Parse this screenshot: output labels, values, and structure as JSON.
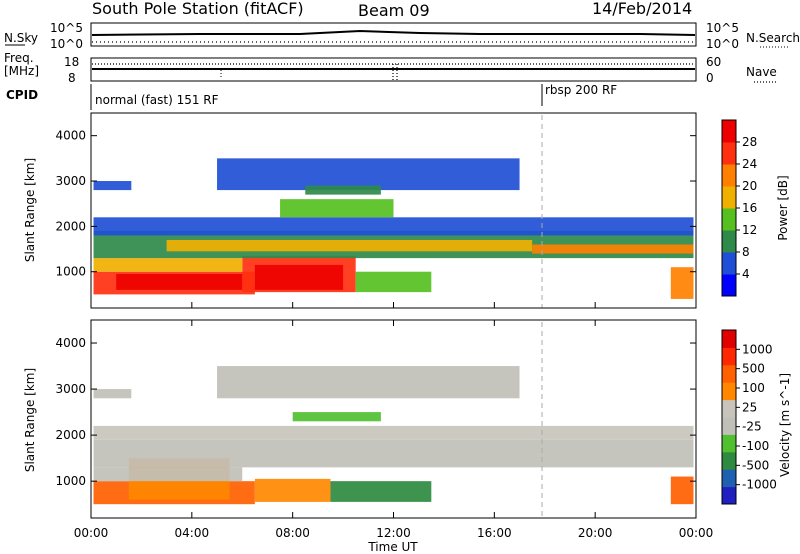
{
  "header": {
    "station": "South Pole Station (fitACF)",
    "beam": "Beam 09",
    "date": "14/Feb/2014"
  },
  "top_panels": {
    "nsky_label": "N.Sky",
    "nsearch_label": "N.Search",
    "freq_label_line1": "Freq.",
    "freq_label_line2": "[MHz]",
    "nave_label": "Nave",
    "cpid_label": "CPID",
    "counts_ticks": [
      "10^5",
      "10^0"
    ],
    "freq_ticks": [
      "18",
      "8"
    ],
    "nave_ticks": [
      "60",
      "0"
    ],
    "cpid_segments": [
      {
        "label": "normal (fast) 151 RF",
        "start_hour": 0
      },
      {
        "label": "rbsp 200 RF",
        "start_hour": 18
      }
    ]
  },
  "colors": {
    "power": [
      "#0000ff",
      "#1f4fd6",
      "#2f8a4a",
      "#55c020",
      "#f0b000",
      "#ff8000",
      "#ff3010",
      "#ee0000"
    ],
    "velocity": [
      "#2020c0",
      "#2060b0",
      "#2e8a40",
      "#50c030",
      "#c0c0b8",
      "#c8c4bc",
      "#ff8800",
      "#ff6000",
      "#ff2800",
      "#e00000"
    ]
  },
  "chart_data": [
    {
      "type": "heatmap",
      "quantity": "Power",
      "ylabel": "Slant Range [km]",
      "colorbar_label": "Power [dB]",
      "colorbar_ticks": [
        "28",
        "24",
        "20",
        "16",
        "12",
        "8",
        "4"
      ],
      "colorbar_range": [
        0,
        32
      ],
      "ylim": [
        200,
        4500
      ],
      "y_ticks": [
        1000,
        2000,
        3000,
        4000
      ],
      "bands": [
        {
          "t0": 0.1,
          "t1": 6.5,
          "r0": 500,
          "r1": 1000,
          "level": 6
        },
        {
          "t0": 1.0,
          "t1": 6.0,
          "r0": 600,
          "r1": 950,
          "level": 7
        },
        {
          "t0": 6.0,
          "t1": 10.5,
          "r0": 550,
          "r1": 1350,
          "level": 6
        },
        {
          "t0": 6.5,
          "t1": 10.0,
          "r0": 600,
          "r1": 1150,
          "level": 7
        },
        {
          "t0": 10.5,
          "t1": 13.5,
          "r0": 550,
          "r1": 1000,
          "level": 3
        },
        {
          "t0": 0.1,
          "t1": 6.0,
          "r0": 1000,
          "r1": 1300,
          "level": 4
        },
        {
          "t0": 0.1,
          "t1": 23.9,
          "r0": 1300,
          "r1": 1900,
          "level": 2
        },
        {
          "t0": 3.0,
          "t1": 17.5,
          "r0": 1450,
          "r1": 1700,
          "level": 4
        },
        {
          "t0": 17.5,
          "t1": 23.9,
          "r0": 1400,
          "r1": 1600,
          "level": 5
        },
        {
          "t0": 0.1,
          "t1": 23.9,
          "r0": 1800,
          "r1": 2200,
          "level": 1
        },
        {
          "t0": 7.5,
          "t1": 12.0,
          "r0": 2200,
          "r1": 2600,
          "level": 3
        },
        {
          "t0": 5.0,
          "t1": 17.0,
          "r0": 2800,
          "r1": 3500,
          "level": 1
        },
        {
          "t0": 0.1,
          "t1": 1.6,
          "r0": 2800,
          "r1": 3000,
          "level": 1
        },
        {
          "t0": 8.5,
          "t1": 11.5,
          "r0": 2700,
          "r1": 2900,
          "level": 2
        },
        {
          "t0": 23.0,
          "t1": 23.9,
          "r0": 400,
          "r1": 1100,
          "level": 5
        }
      ]
    },
    {
      "type": "heatmap",
      "quantity": "Velocity",
      "ylabel": "Slant Range [km]",
      "colorbar_label": "Velocity [m s^-1]",
      "colorbar_ticks": [
        "1000",
        "500",
        "100",
        "25",
        "-25",
        "-100",
        "-500",
        "-1000"
      ],
      "colorbar_range": [
        -1250,
        1250
      ],
      "ylim": [
        200,
        4500
      ],
      "y_ticks": [
        1000,
        2000,
        3000,
        4000
      ],
      "bands": [
        {
          "t0": 0.1,
          "t1": 6.5,
          "r0": 500,
          "r1": 1000,
          "level": 7
        },
        {
          "t0": 1.5,
          "t1": 5.5,
          "r0": 600,
          "r1": 1500,
          "level": 6
        },
        {
          "t0": 6.5,
          "t1": 9.5,
          "r0": 550,
          "r1": 1050,
          "level": 6
        },
        {
          "t0": 9.5,
          "t1": 13.5,
          "r0": 550,
          "r1": 1000,
          "level": 2
        },
        {
          "t0": 0.1,
          "t1": 6.0,
          "r0": 1000,
          "r1": 1300,
          "level": 4
        },
        {
          "t0": 0.1,
          "t1": 23.9,
          "r0": 1300,
          "r1": 1900,
          "level": 4
        },
        {
          "t0": 0.1,
          "t1": 23.9,
          "r0": 1900,
          "r1": 2200,
          "level": 5
        },
        {
          "t0": 8.0,
          "t1": 11.5,
          "r0": 2300,
          "r1": 2500,
          "level": 3
        },
        {
          "t0": 5.0,
          "t1": 17.0,
          "r0": 2800,
          "r1": 3500,
          "level": 4
        },
        {
          "t0": 0.1,
          "t1": 1.6,
          "r0": 2800,
          "r1": 3000,
          "level": 4
        },
        {
          "t0": 23.0,
          "t1": 23.9,
          "r0": 500,
          "r1": 1100,
          "level": 7
        }
      ]
    }
  ],
  "x_axis": {
    "label": "Time UT",
    "ticks": [
      "00:00",
      "04:00",
      "08:00",
      "12:00",
      "16:00",
      "20:00",
      "00:00"
    ],
    "xlim_hours": [
      0,
      24
    ]
  }
}
